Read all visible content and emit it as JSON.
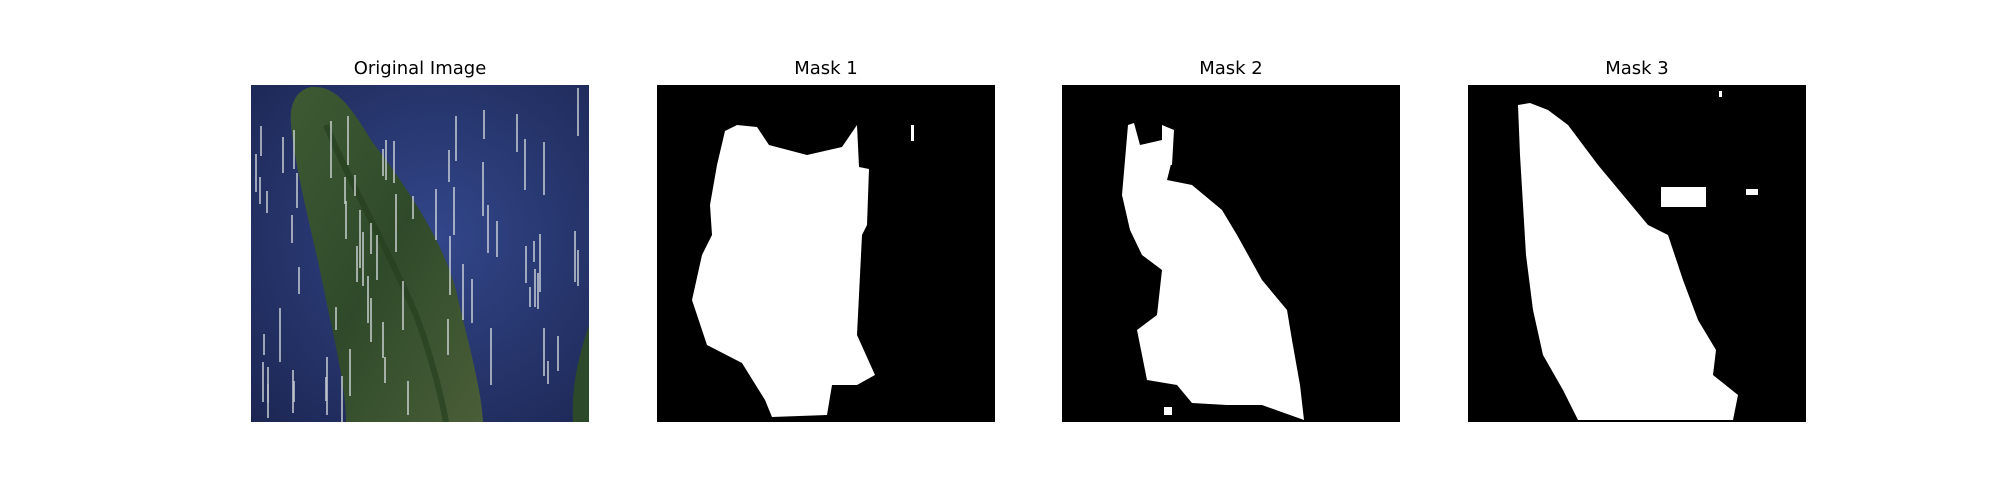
{
  "figure": {
    "panels": [
      {
        "title": "Original Image"
      },
      {
        "title": "Mask 1"
      },
      {
        "title": "Mask 2"
      },
      {
        "title": "Mask 3"
      }
    ]
  },
  "colors": {
    "mask_foreground": "#ffffff",
    "mask_background": "#000000",
    "water": "#2a3f7a",
    "land": "#3f5a32"
  }
}
